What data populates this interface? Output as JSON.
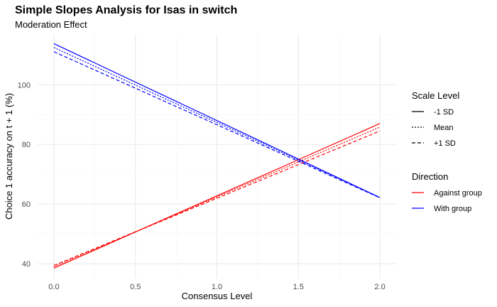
{
  "chart_data": {
    "type": "line",
    "title": "Simple Slopes Analysis for Isas in switch",
    "subtitle": "Moderation Effect",
    "xlabel": "Consensus Level",
    "ylabel": "Choice 1 accuracy on t + 1 (%)",
    "xlim": [
      -0.1,
      2.1
    ],
    "ylim": [
      35,
      117
    ],
    "xticks": [
      0,
      0.5,
      1,
      1.5,
      2
    ],
    "xtick_labels": [
      "0.0",
      "0.5",
      "1.0",
      "1.5",
      "2.0"
    ],
    "yticks": [
      40,
      60,
      80,
      100
    ],
    "ytick_labels": [
      "40",
      "60",
      "80",
      "100"
    ],
    "grid": true,
    "legend_position": "right",
    "legends": [
      {
        "title": "Scale Level",
        "items": [
          {
            "label": "-1 SD",
            "linetype": "solid"
          },
          {
            "label": "Mean",
            "linetype": "dotted"
          },
          {
            "label": "+1 SD",
            "linetype": "dashed"
          }
        ]
      },
      {
        "title": "Direction",
        "items": [
          {
            "label": "Against group",
            "color": "#ff0000"
          },
          {
            "label": "With group",
            "color": "#0000ff"
          }
        ]
      }
    ],
    "series": [
      {
        "direction": "Against group",
        "scale_level": "-1 SD",
        "color": "#ff0000",
        "linetype": "solid",
        "x": [
          0,
          2
        ],
        "y": [
          38.5,
          87.0
        ]
      },
      {
        "direction": "Against group",
        "scale_level": "Mean",
        "color": "#ff0000",
        "linetype": "dotted",
        "x": [
          0,
          2
        ],
        "y": [
          39.0,
          85.8
        ]
      },
      {
        "direction": "Against group",
        "scale_level": "+1 SD",
        "color": "#ff0000",
        "linetype": "dashed",
        "x": [
          0,
          2
        ],
        "y": [
          39.4,
          84.5
        ]
      },
      {
        "direction": "With group",
        "scale_level": "-1 SD",
        "color": "#0000ff",
        "linetype": "solid",
        "x": [
          0,
          2
        ],
        "y": [
          113.8,
          62.2
        ]
      },
      {
        "direction": "With group",
        "scale_level": "Mean",
        "color": "#0000ff",
        "linetype": "dotted",
        "x": [
          0,
          2
        ],
        "y": [
          112.5,
          62.2
        ]
      },
      {
        "direction": "With group",
        "scale_level": "+1 SD",
        "color": "#0000ff",
        "linetype": "dashed",
        "x": [
          0,
          2
        ],
        "y": [
          111.1,
          62.1
        ]
      }
    ]
  }
}
